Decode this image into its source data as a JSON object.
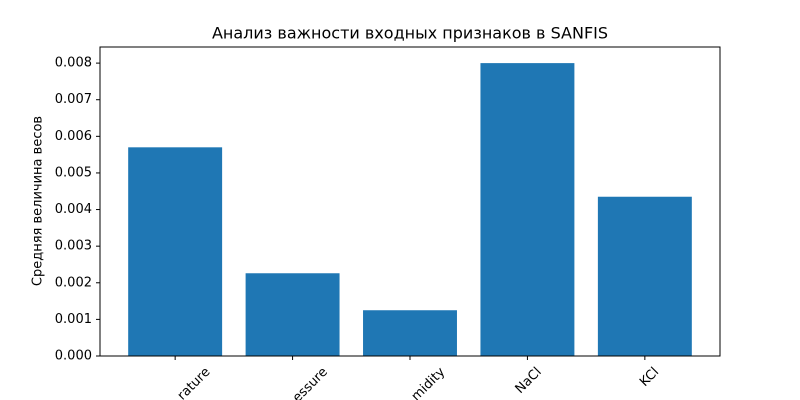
{
  "chart_data": {
    "type": "bar",
    "title": "Анализ важности входных признаков в SANFIS",
    "ylabel": "Средняя величина весов",
    "categories": [
      "rature",
      "essure",
      "midity",
      "NaCl",
      "KCl"
    ],
    "values": [
      0.0057,
      0.00226,
      0.00125,
      0.008,
      0.00435
    ],
    "color": "#1f77b4",
    "ylim": [
      0,
      0.00844
    ],
    "yticks": [
      {
        "value": 0,
        "label": "0.000"
      },
      {
        "value": 0.001,
        "label": "0.001"
      },
      {
        "value": 0.002,
        "label": "0.002"
      },
      {
        "value": 0.003,
        "label": "0.003"
      },
      {
        "value": 0.004,
        "label": "0.004"
      },
      {
        "value": 0.005,
        "label": "0.005"
      },
      {
        "value": 0.006,
        "label": "0.006"
      },
      {
        "value": 0.007,
        "label": "0.007"
      },
      {
        "value": 0.008,
        "label": "0.008"
      }
    ],
    "grid": false
  }
}
